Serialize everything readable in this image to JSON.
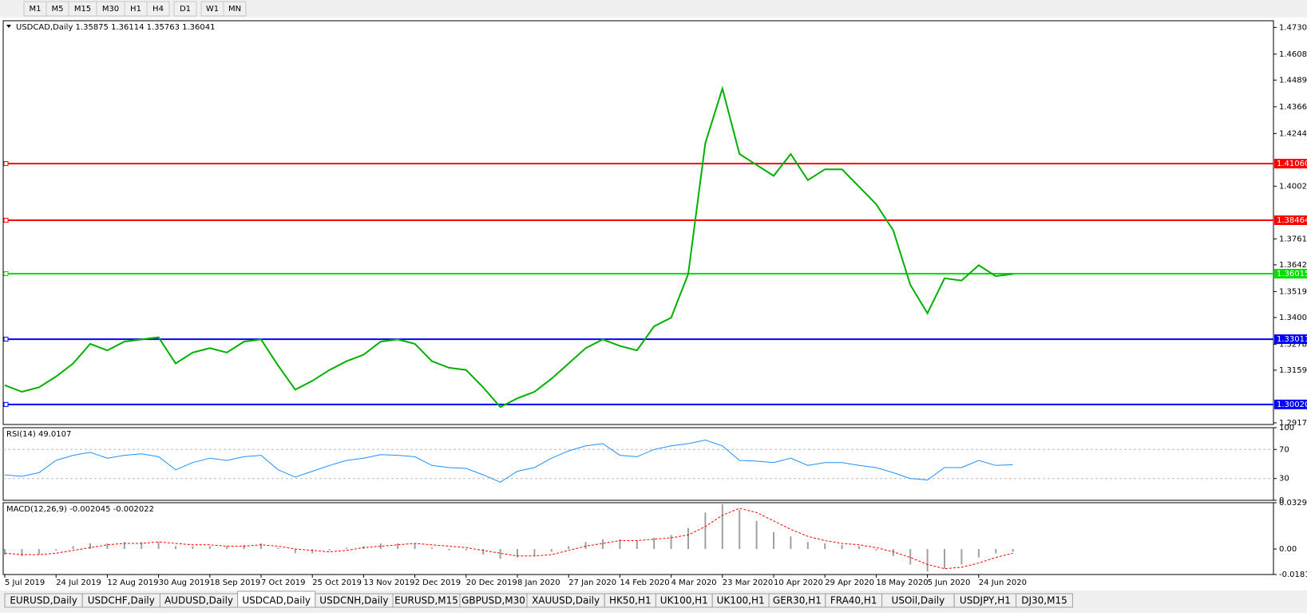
{
  "toolbar": [
    "M1",
    "M5",
    "M15",
    "M30",
    "H1",
    "H4",
    "D1",
    "W1",
    "MN"
  ],
  "tabs": [
    {
      "label": "EURUSD,Daily",
      "active": false
    },
    {
      "label": "USDCHF,Daily",
      "active": false
    },
    {
      "label": "AUDUSD,Daily",
      "active": false
    },
    {
      "label": "USDCAD,Daily",
      "active": true
    },
    {
      "label": "USDCNH,Daily",
      "active": false
    },
    {
      "label": "EURUSD,M15",
      "active": false
    },
    {
      "label": "GBPUSD,M30",
      "active": false
    },
    {
      "label": "XAUUSD,Daily",
      "active": false
    },
    {
      "label": "HK50,H1",
      "active": false
    },
    {
      "label": "UK100,H1",
      "active": false
    },
    {
      "label": "UK100,H1",
      "active": false
    },
    {
      "label": "GER30,H1",
      "active": false
    },
    {
      "label": "FRA40,H1",
      "active": false
    },
    {
      "label": "USOil,Daily",
      "active": false
    },
    {
      "label": "USDJPY,H1",
      "active": false
    },
    {
      "label": "DJ30,M15",
      "active": false
    }
  ],
  "chart_data": [
    {
      "type": "line",
      "title": "USDCAD,Daily  1.35875 1.36114 1.35763 1.36041",
      "color": "#00b000",
      "categories": [
        "5 Jul 2019",
        null,
        null,
        "24 Jul 2019",
        null,
        null,
        "12 Aug 2019",
        null,
        null,
        "30 Aug 2019",
        null,
        null,
        "18 Sep 2019",
        null,
        null,
        "7 Oct 2019",
        null,
        null,
        "25 Oct 2019",
        null,
        null,
        "13 Nov 2019",
        null,
        null,
        "2 Dec 2019",
        null,
        null,
        "20 Dec 2019",
        null,
        null,
        "8 Jan 2020",
        null,
        null,
        "27 Jan 2020",
        null,
        null,
        "14 Feb 2020",
        null,
        null,
        "4 Mar 2020",
        null,
        null,
        "23 Mar 2020",
        null,
        null,
        "10 Apr 2020",
        null,
        null,
        "29 Apr 2020",
        null,
        null,
        "18 May 2020",
        null,
        null,
        "5 Jun 2020",
        null,
        null,
        "24 Jun 2020",
        null,
        null
      ],
      "values": [
        1.309,
        1.306,
        1.308,
        1.313,
        1.319,
        1.328,
        1.325,
        1.329,
        1.33,
        1.331,
        1.319,
        1.324,
        1.326,
        1.324,
        1.329,
        1.33,
        1.318,
        1.307,
        1.311,
        1.316,
        1.32,
        1.323,
        1.329,
        1.33,
        1.328,
        1.32,
        1.317,
        1.316,
        1.308,
        1.299,
        1.303,
        1.306,
        1.312,
        1.319,
        1.326,
        1.33,
        1.327,
        1.325,
        1.336,
        1.34,
        1.36,
        1.42,
        1.445,
        1.415,
        1.41,
        1.405,
        1.415,
        1.403,
        1.408,
        1.408,
        1.4,
        1.392,
        1.38,
        1.355,
        1.342,
        1.358,
        1.357,
        1.364,
        1.359,
        1.36
      ],
      "ylim": [
        1.291,
        1.4761
      ],
      "yticks": [
        {
          "value": 1.47305,
          "label": "1.47305"
        },
        {
          "value": 1.4608,
          "label": "1.46080"
        },
        {
          "value": 1.4489,
          "label": "1.44890"
        },
        {
          "value": 1.43665,
          "label": "1.43665"
        },
        {
          "value": 1.4244,
          "label": "1.42440"
        },
        {
          "value": 1.40025,
          "label": "1.40025"
        },
        {
          "value": 1.3761,
          "label": "1.37610"
        },
        {
          "value": 1.3642,
          "label": "1.36420"
        },
        {
          "value": 1.35195,
          "label": "1.35195"
        },
        {
          "value": 1.34005,
          "label": "1.34005"
        },
        {
          "value": 1.3278,
          "label": "1.32780"
        },
        {
          "value": 1.3159,
          "label": "1.31590"
        },
        {
          "value": 1.29175,
          "label": "1.29175"
        }
      ],
      "levels": [
        {
          "value": 1.4106,
          "label": "1.41060",
          "color": "#ff0000"
        },
        {
          "value": 1.38464,
          "label": "1.38464",
          "color": "#ff0000"
        },
        {
          "value": 1.36015,
          "label": "1.36015",
          "color": "#00dd00"
        },
        {
          "value": 1.33011,
          "label": "1.33011",
          "color": "#0000ff"
        },
        {
          "value": 1.3002,
          "label": "1.30020",
          "color": "#0000ff"
        }
      ]
    },
    {
      "type": "line",
      "title": "RSI(14) 49.0107",
      "color": "#1e90ff",
      "values": [
        35,
        33,
        38,
        55,
        62,
        66,
        58,
        62,
        64,
        60,
        42,
        52,
        58,
        55,
        60,
        62,
        42,
        32,
        40,
        48,
        55,
        58,
        63,
        62,
        60,
        48,
        45,
        44,
        35,
        25,
        40,
        45,
        58,
        68,
        75,
        78,
        62,
        60,
        70,
        75,
        78,
        83,
        75,
        55,
        54,
        52,
        58,
        48,
        52,
        52,
        48,
        45,
        38,
        30,
        28,
        45,
        45,
        55,
        48,
        49
      ],
      "ylim": [
        0,
        100
      ],
      "yticks": [
        100,
        70,
        30,
        0
      ]
    },
    {
      "type": "bar",
      "title": "MACD(12,26,9) -0.002045 -0.002022",
      "series": [
        {
          "color": "#a0a0a0",
          "style": "bar",
          "values": [
            -0.004,
            -0.005,
            -0.004,
            -0.001,
            0.002,
            0.004,
            0.004,
            0.005,
            0.005,
            0.005,
            0.002,
            0.002,
            0.002,
            0.002,
            0.003,
            0.004,
            0.001,
            -0.003,
            -0.003,
            -0.001,
            0.001,
            0.002,
            0.004,
            0.004,
            0.004,
            0.001,
            -0.001,
            -0.001,
            -0.004,
            -0.007,
            -0.006,
            -0.005,
            -0.002,
            0.002,
            0.005,
            0.007,
            0.007,
            0.006,
            0.008,
            0.01,
            0.015,
            0.026,
            0.032,
            0.028,
            0.02,
            0.012,
            0.009,
            0.005,
            0.004,
            0.003,
            0.002,
            -0.001,
            -0.005,
            -0.011,
            -0.016,
            -0.014,
            -0.011,
            -0.006,
            -0.003,
            -0.002
          ]
        },
        {
          "color": "#ff0000",
          "style": "dashed",
          "values": [
            -0.003,
            -0.004,
            -0.004,
            -0.003,
            -0.001,
            0.001,
            0.003,
            0.004,
            0.004,
            0.005,
            0.004,
            0.003,
            0.003,
            0.002,
            0.002,
            0.003,
            0.002,
            0.0,
            -0.001,
            -0.002,
            -0.001,
            0.001,
            0.002,
            0.003,
            0.004,
            0.003,
            0.002,
            0.001,
            -0.001,
            -0.003,
            -0.005,
            -0.005,
            -0.004,
            -0.001,
            0.002,
            0.004,
            0.006,
            0.006,
            0.007,
            0.008,
            0.01,
            0.016,
            0.024,
            0.029,
            0.026,
            0.02,
            0.014,
            0.009,
            0.006,
            0.004,
            0.003,
            0.001,
            -0.002,
            -0.006,
            -0.011,
            -0.014,
            -0.013,
            -0.01,
            -0.006,
            -0.003
          ]
        }
      ],
      "ylim": [
        -0.01815,
        0.032972
      ],
      "yticks": [
        0.032972,
        {
          "value": 0,
          "label": "0.00"
        },
        -0.01815
      ]
    }
  ]
}
